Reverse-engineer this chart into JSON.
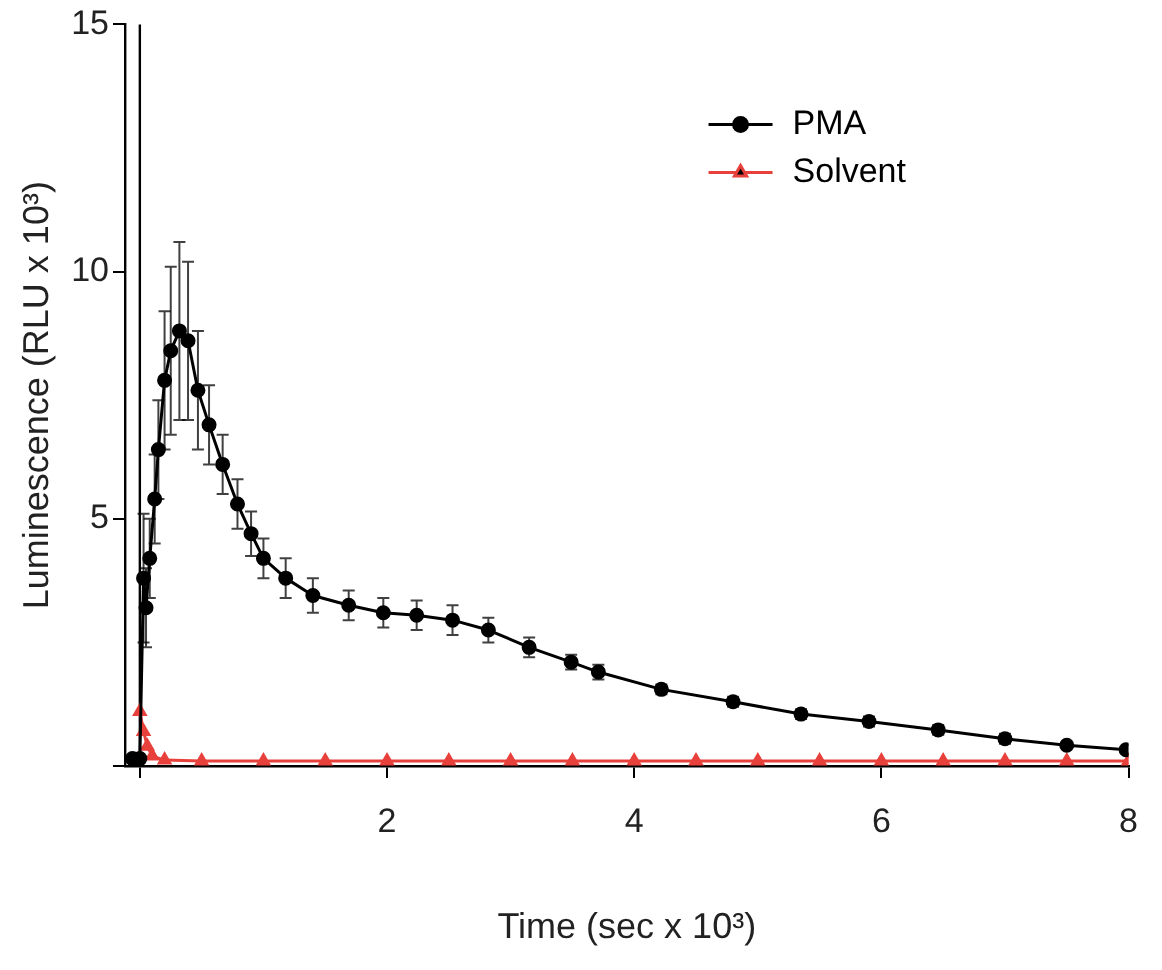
{
  "chart_data": {
    "type": "line",
    "xlabel": "Time (sec x 10³)",
    "ylabel": "Luminescence (RLU x 10³)",
    "xlim": [
      -0.12,
      8
    ],
    "xticks": [
      {
        "value": 0,
        "label": null
      },
      2,
      4,
      6,
      8
    ],
    "ylim": [
      0,
      15
    ],
    "yticks": [
      {
        "value": 0,
        "label": null
      },
      5,
      10,
      15
    ],
    "grid": false,
    "legend": "top right",
    "ref_lines": [
      {
        "axis": "x",
        "value": 0,
        "color": "#000000"
      }
    ],
    "series": [
      {
        "name": "PMA",
        "color": "#000000",
        "marker": "circle",
        "x": [
          -0.06,
          0,
          0.03,
          0.05,
          0.08,
          0.12,
          0.15,
          0.2,
          0.25,
          0.32,
          0.39,
          0.47,
          0.56,
          0.67,
          0.79,
          0.9,
          1.0,
          1.18,
          1.4,
          1.69,
          1.97,
          2.24,
          2.53,
          2.82,
          3.15,
          3.49,
          3.71,
          4.22,
          4.8,
          5.35,
          5.9,
          6.46,
          7.0,
          7.5,
          7.98
        ],
        "values": [
          0.15,
          0.15,
          3.8,
          3.2,
          4.2,
          5.4,
          6.4,
          7.8,
          8.4,
          8.8,
          8.6,
          7.6,
          6.9,
          6.1,
          5.3,
          4.7,
          4.2,
          3.8,
          3.45,
          3.25,
          3.1,
          3.05,
          2.95,
          2.75,
          2.4,
          2.1,
          1.9,
          1.55,
          1.3,
          1.05,
          0.9,
          0.73,
          0.55,
          0.42,
          0.33
        ],
        "errors": [
          null,
          null,
          1.3,
          0.8,
          0.8,
          0.9,
          1.0,
          1.4,
          1.7,
          1.8,
          1.6,
          1.2,
          0.8,
          0.6,
          0.5,
          0.45,
          0.4,
          0.4,
          0.35,
          0.3,
          0.3,
          0.3,
          0.3,
          0.25,
          0.2,
          0.15,
          0.15,
          0.1,
          0.1,
          0.1,
          0.1,
          0.1,
          0.1,
          null,
          null
        ]
      },
      {
        "name": "Solvent",
        "color": "#e8413c",
        "marker": "triangle",
        "x": [
          0,
          0.03,
          0.06,
          0.1,
          0.2,
          0.5,
          1,
          1.5,
          2,
          2.5,
          3,
          3.5,
          4,
          4.5,
          5,
          5.5,
          6,
          6.5,
          7,
          7.5,
          8
        ],
        "values": [
          1.1,
          0.7,
          0.4,
          0.2,
          0.12,
          0.1,
          0.1,
          0.1,
          0.1,
          0.1,
          0.1,
          0.1,
          0.1,
          0.1,
          0.1,
          0.1,
          0.1,
          0.1,
          0.1,
          0.1,
          0.1
        ]
      }
    ]
  }
}
